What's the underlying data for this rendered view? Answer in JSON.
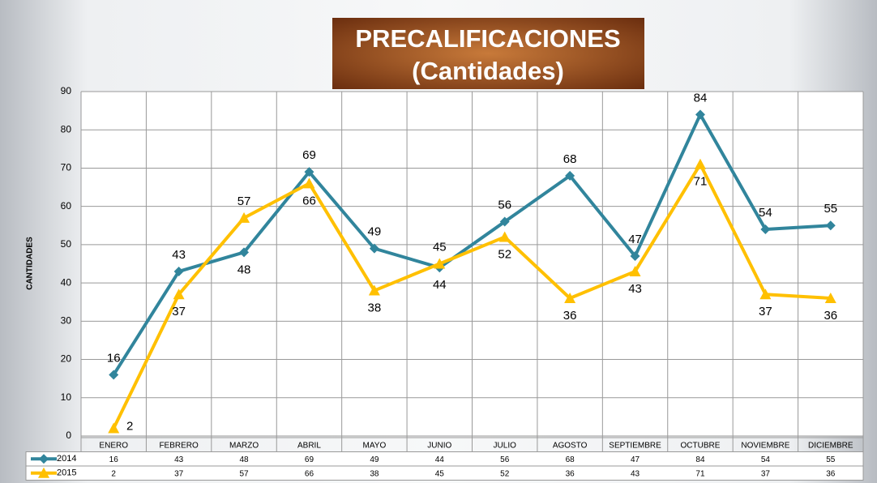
{
  "chart_data": {
    "type": "line",
    "title": "PRECALIFICACIONES",
    "subtitle": "(Cantidades)",
    "y_label": "CANTIDADES",
    "categories": [
      "ENERO",
      "FEBRERO",
      "MARZO",
      "ABRIL",
      "MAYO",
      "JUNIO",
      "JULIO",
      "AGOSTO",
      "SEPTIEMBRE",
      "OCTUBRE",
      "NOVIEMBRE",
      "DICIEMBRE"
    ],
    "series": [
      {
        "name": "2014",
        "color": "#31859c",
        "values": [
          16,
          43,
          48,
          69,
          49,
          44,
          56,
          68,
          47,
          84,
          54,
          55
        ]
      },
      {
        "name": "2015",
        "color": "#ffc000",
        "values": [
          2,
          37,
          57,
          66,
          38,
          45,
          52,
          36,
          43,
          71,
          37,
          36
        ]
      }
    ],
    "ylim": [
      0,
      90
    ],
    "yticks": [
      0,
      10,
      20,
      30,
      40,
      50,
      60,
      70,
      80,
      90
    ],
    "grid": true
  }
}
